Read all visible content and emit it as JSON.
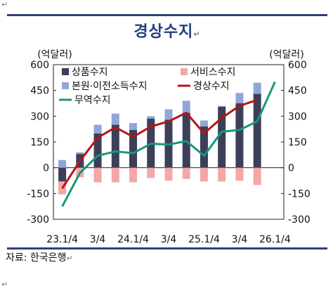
{
  "header": {
    "title": "경상수지"
  },
  "source_line": "자료: 한국은행",
  "chart_data": {
    "type": "bar",
    "title": "경상수지",
    "y_unit_left": "(억달러)",
    "y_unit_right": "(억달러)",
    "ylim": [
      -300,
      600
    ],
    "yticks": [
      600,
      450,
      300,
      150,
      0,
      -150,
      -300
    ],
    "categories": [
      "23.1/4",
      "23.2/4",
      "23.3/4",
      "23.4/4",
      "24.1/4",
      "24.2/4",
      "24.3/4",
      "24.4/4",
      "25.1/4",
      "25.2/4",
      "25.3/4",
      "25.4/4",
      "26.1/4"
    ],
    "x_tick_labels": [
      "23.1/4",
      "",
      "3/4",
      "",
      "24.1/4",
      "",
      "3/4",
      "",
      "25.1/4",
      "",
      "3/4",
      "",
      "26.1/4"
    ],
    "legend": [
      "상품수지",
      "서비스수지",
      "본원·이전소득수지",
      "경상수지",
      "무역수지"
    ],
    "series": [
      {
        "name": "상품수지",
        "kind": "bar",
        "color": "#3b3f57",
        "values": [
          -80,
          80,
          200,
          250,
          220,
          285,
          280,
          320,
          240,
          355,
          375,
          430,
          null
        ]
      },
      {
        "name": "서비스수지",
        "kind": "bar",
        "color": "#f4a7a7",
        "values": [
          -75,
          -55,
          -85,
          -85,
          -85,
          -60,
          -75,
          -65,
          -80,
          -80,
          -75,
          -100,
          null
        ]
      },
      {
        "name": "본원·이전소득수지",
        "kind": "bar",
        "color": "#8fa6d9",
        "values": [
          45,
          10,
          50,
          65,
          40,
          15,
          60,
          70,
          35,
          5,
          60,
          65,
          null
        ]
      },
      {
        "name": "경상수지",
        "kind": "line",
        "color": "#b4151a",
        "values": [
          -120,
          40,
          175,
          235,
          180,
          240,
          270,
          320,
          200,
          290,
          360,
          395,
          null
        ]
      },
      {
        "name": "무역수지",
        "kind": "line",
        "color": "#17967c",
        "values": [
          -225,
          -30,
          70,
          95,
          85,
          140,
          135,
          155,
          70,
          210,
          220,
          270,
          500
        ]
      }
    ]
  }
}
